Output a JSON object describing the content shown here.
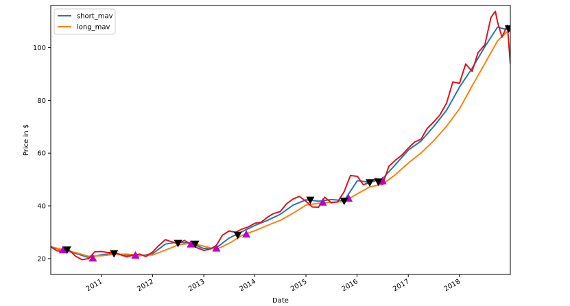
{
  "chart_data": {
    "type": "line",
    "title": "",
    "xlabel": "Date",
    "ylabel": "Price in $",
    "x_range": [
      "2010-01-04",
      "2018-12-31"
    ],
    "ylim": [
      14,
      116
    ],
    "yticks": [
      20,
      40,
      60,
      80,
      100
    ],
    "xticks": [
      "2011",
      "2012",
      "2013",
      "2014",
      "2015",
      "2016",
      "2017",
      "2018"
    ],
    "grid": false,
    "legend_position": "top-left",
    "legend": [
      "short_mav",
      "long_mav"
    ],
    "colors": {
      "price": "#e3111b",
      "short_mav": "#1f77b4",
      "long_mav": "#ff7f0e",
      "buy_marker": "#bf00bf",
      "sell_marker": "#000000"
    },
    "series": [
      {
        "name": "short_mav",
        "points": [
          [
            "2010-01-04",
            24.2
          ],
          [
            "2010-04-01",
            23.3
          ],
          [
            "2010-07-01",
            22.0
          ],
          [
            "2010-10-01",
            20.4
          ],
          [
            "2011-01-03",
            21.5
          ],
          [
            "2011-04-01",
            22.0
          ],
          [
            "2011-07-01",
            21.3
          ],
          [
            "2011-10-03",
            21.1
          ],
          [
            "2012-01-03",
            21.9
          ],
          [
            "2012-04-02",
            25.5
          ],
          [
            "2012-07-02",
            26.3
          ],
          [
            "2012-10-01",
            25.8
          ],
          [
            "2013-01-02",
            23.8
          ],
          [
            "2013-04-01",
            24.1
          ],
          [
            "2013-07-01",
            27.8
          ],
          [
            "2013-10-01",
            30.2
          ],
          [
            "2014-01-02",
            32.6
          ],
          [
            "2014-04-01",
            34.5
          ],
          [
            "2014-07-01",
            36.8
          ],
          [
            "2014-10-01",
            40.3
          ],
          [
            "2015-01-02",
            42.3
          ],
          [
            "2015-04-01",
            41.8
          ],
          [
            "2015-07-01",
            42.4
          ],
          [
            "2015-10-01",
            42.0
          ],
          [
            "2016-01-04",
            49.6
          ],
          [
            "2016-04-01",
            48.9
          ],
          [
            "2016-07-01",
            50.3
          ],
          [
            "2016-10-03",
            55.8
          ],
          [
            "2017-01-03",
            61.2
          ],
          [
            "2017-04-03",
            64.6
          ],
          [
            "2017-07-03",
            70.2
          ],
          [
            "2017-10-02",
            76.3
          ],
          [
            "2018-01-02",
            85.0
          ],
          [
            "2018-04-02",
            92.2
          ],
          [
            "2018-07-02",
            100.4
          ],
          [
            "2018-10-01",
            107.8
          ],
          [
            "2018-12-31",
            106.5
          ]
        ]
      },
      {
        "name": "long_mav",
        "points": [
          [
            "2010-01-04",
            24.5
          ],
          [
            "2010-04-01",
            23.4
          ],
          [
            "2010-07-01",
            22.3
          ],
          [
            "2010-10-01",
            20.9
          ],
          [
            "2011-01-03",
            21.1
          ],
          [
            "2011-04-01",
            21.6
          ],
          [
            "2011-07-01",
            21.7
          ],
          [
            "2011-10-03",
            21.2
          ],
          [
            "2012-01-03",
            21.4
          ],
          [
            "2012-04-02",
            23.2
          ],
          [
            "2012-07-02",
            25.2
          ],
          [
            "2012-10-01",
            25.9
          ],
          [
            "2013-01-02",
            24.7
          ],
          [
            "2013-04-01",
            23.5
          ],
          [
            "2013-07-01",
            25.8
          ],
          [
            "2013-10-01",
            28.8
          ],
          [
            "2014-01-02",
            30.6
          ],
          [
            "2014-04-01",
            32.6
          ],
          [
            "2014-07-01",
            34.5
          ],
          [
            "2014-10-01",
            37.2
          ],
          [
            "2015-01-02",
            40.3
          ],
          [
            "2015-04-01",
            41.0
          ],
          [
            "2015-07-01",
            41.4
          ],
          [
            "2015-10-01",
            41.6
          ],
          [
            "2016-01-04",
            44.6
          ],
          [
            "2016-04-01",
            47.2
          ],
          [
            "2016-07-01",
            48.2
          ],
          [
            "2016-10-03",
            51.9
          ],
          [
            "2017-01-03",
            56.3
          ],
          [
            "2017-04-03",
            60.1
          ],
          [
            "2017-07-03",
            64.8
          ],
          [
            "2017-10-02",
            70.2
          ],
          [
            "2018-01-02",
            76.8
          ],
          [
            "2018-04-02",
            85.5
          ],
          [
            "2018-07-02",
            94.0
          ],
          [
            "2018-10-01",
            102.6
          ],
          [
            "2018-12-31",
            107.2
          ]
        ]
      },
      {
        "name": "price",
        "points": [
          [
            "2010-01-04",
            24.6
          ],
          [
            "2010-02-15",
            23.0
          ],
          [
            "2010-04-01",
            22.7
          ],
          [
            "2010-05-15",
            23.3
          ],
          [
            "2010-07-01",
            20.9
          ],
          [
            "2010-08-15",
            19.6
          ],
          [
            "2010-10-01",
            20.0
          ],
          [
            "2010-11-15",
            22.6
          ],
          [
            "2011-01-03",
            22.7
          ],
          [
            "2011-02-15",
            22.3
          ],
          [
            "2011-04-01",
            22.4
          ],
          [
            "2011-05-15",
            21.5
          ],
          [
            "2011-07-01",
            20.7
          ],
          [
            "2011-08-15",
            21.3
          ],
          [
            "2011-10-03",
            21.7
          ],
          [
            "2011-11-15",
            20.8
          ],
          [
            "2012-01-03",
            22.6
          ],
          [
            "2012-02-15",
            25.0
          ],
          [
            "2012-04-02",
            27.2
          ],
          [
            "2012-05-15",
            26.4
          ],
          [
            "2012-07-02",
            25.7
          ],
          [
            "2012-08-15",
            26.9
          ],
          [
            "2012-10-01",
            25.5
          ],
          [
            "2012-11-15",
            24.1
          ],
          [
            "2013-01-02",
            23.1
          ],
          [
            "2013-02-15",
            23.6
          ],
          [
            "2013-04-01",
            25.0
          ],
          [
            "2013-05-15",
            28.9
          ],
          [
            "2013-07-01",
            30.5
          ],
          [
            "2013-08-15",
            30.0
          ],
          [
            "2013-10-01",
            31.2
          ],
          [
            "2013-11-15",
            32.0
          ],
          [
            "2014-01-02",
            33.4
          ],
          [
            "2014-02-15",
            33.8
          ],
          [
            "2014-04-01",
            35.7
          ],
          [
            "2014-05-15",
            37.1
          ],
          [
            "2014-07-01",
            37.8
          ],
          [
            "2014-08-15",
            40.8
          ],
          [
            "2014-10-01",
            42.6
          ],
          [
            "2014-11-15",
            43.6
          ],
          [
            "2015-01-02",
            41.7
          ],
          [
            "2015-02-15",
            39.6
          ],
          [
            "2015-04-01",
            39.5
          ],
          [
            "2015-05-15",
            43.3
          ],
          [
            "2015-07-01",
            41.2
          ],
          [
            "2015-08-15",
            41.5
          ],
          [
            "2015-10-01",
            45.4
          ],
          [
            "2015-11-15",
            51.5
          ],
          [
            "2016-01-04",
            51.2
          ],
          [
            "2016-02-15",
            48.0
          ],
          [
            "2016-04-01",
            48.9
          ],
          [
            "2016-05-15",
            50.4
          ],
          [
            "2016-07-01",
            48.1
          ],
          [
            "2016-08-15",
            55.0
          ],
          [
            "2016-10-03",
            57.4
          ],
          [
            "2016-11-15",
            59.2
          ],
          [
            "2017-01-03",
            62.0
          ],
          [
            "2017-02-15",
            64.2
          ],
          [
            "2017-04-03",
            65.3
          ],
          [
            "2017-05-15",
            69.3
          ],
          [
            "2017-07-03",
            71.9
          ],
          [
            "2017-08-15",
            74.5
          ],
          [
            "2017-10-02",
            79.0
          ],
          [
            "2017-11-15",
            87.0
          ],
          [
            "2018-01-02",
            86.5
          ],
          [
            "2018-02-15",
            93.8
          ],
          [
            "2018-04-02",
            91.0
          ],
          [
            "2018-05-15",
            98.2
          ],
          [
            "2018-07-02",
            101.1
          ],
          [
            "2018-08-15",
            111.5
          ],
          [
            "2018-09-15",
            113.8
          ],
          [
            "2018-10-01",
            109.7
          ],
          [
            "2018-11-01",
            104.0
          ],
          [
            "2018-12-10",
            108.5
          ],
          [
            "2018-12-31",
            93.8
          ]
        ]
      }
    ],
    "buy_signals": [
      [
        "2010-04-01",
        23.3
      ],
      [
        "2010-11-01",
        20.2
      ],
      [
        "2011-09-01",
        21.3
      ],
      [
        "2012-10-01",
        25.5
      ],
      [
        "2013-04-01",
        24.0
      ],
      [
        "2013-11-01",
        29.3
      ],
      [
        "2015-05-01",
        41.4
      ],
      [
        "2015-11-01",
        42.9
      ],
      [
        "2016-07-01",
        49.5
      ]
    ],
    "sell_signals": [
      [
        "2010-05-01",
        23.3
      ],
      [
        "2011-04-01",
        21.9
      ],
      [
        "2012-07-01",
        25.8
      ],
      [
        "2012-11-01",
        25.5
      ],
      [
        "2013-09-01",
        28.9
      ],
      [
        "2015-02-01",
        42.2
      ],
      [
        "2015-10-01",
        41.8
      ],
      [
        "2016-04-01",
        48.8
      ],
      [
        "2016-06-01",
        49.1
      ],
      [
        "2018-12-20",
        107.2
      ]
    ]
  }
}
